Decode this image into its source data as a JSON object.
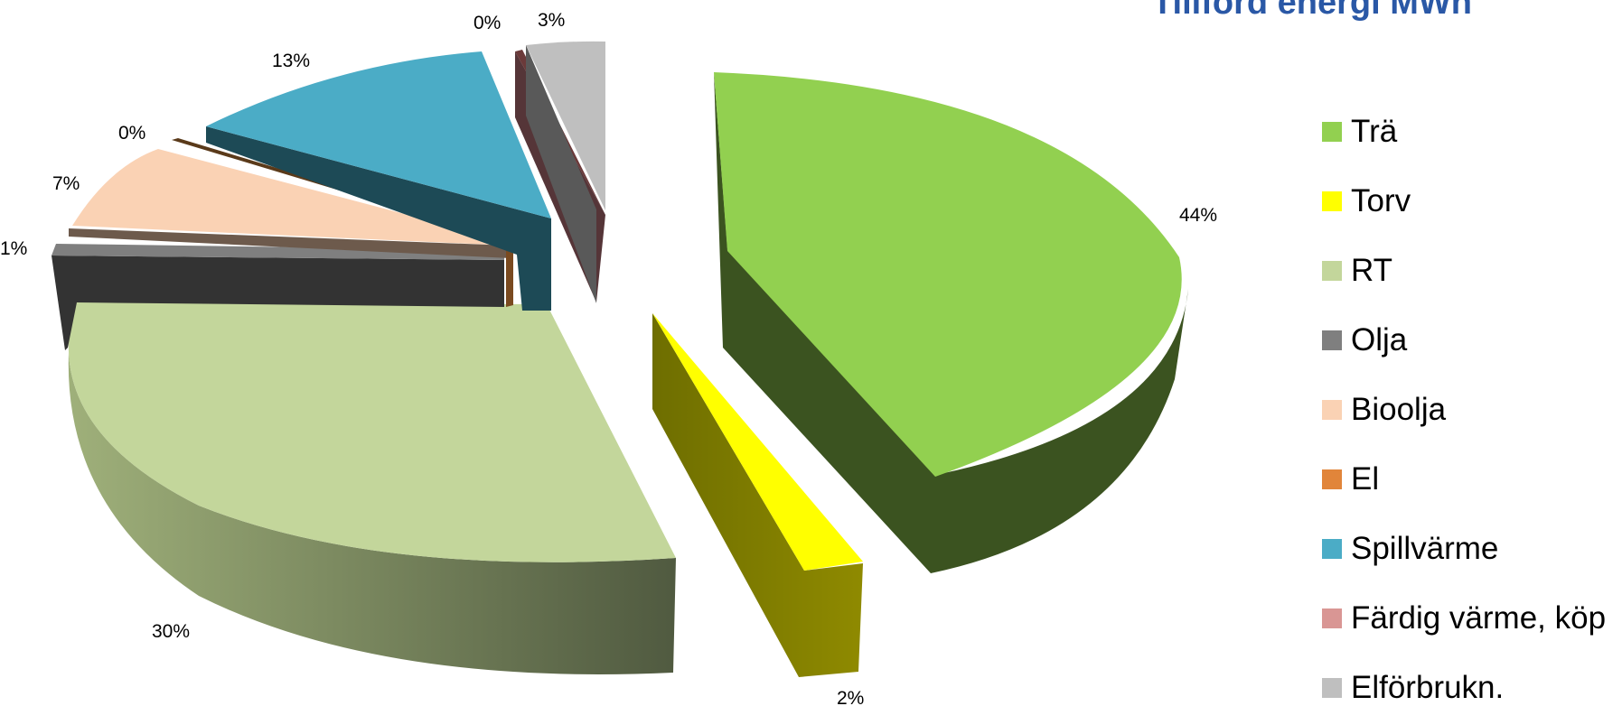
{
  "chart_data": {
    "type": "pie",
    "title": "Tillförd energi MWh",
    "categories": [
      "Trä",
      "Torv",
      "RT",
      "Olja",
      "Bioolja",
      "El",
      "Spillvärme",
      "Färdig värme, köp",
      "Elförbrukn."
    ],
    "values": [
      44,
      2,
      30,
      1,
      7,
      0,
      13,
      0,
      3
    ],
    "data_labels": [
      "44%",
      "2%",
      "30%",
      "1%",
      "7%",
      "0%",
      "13%",
      "0%",
      "3%"
    ],
    "colors": [
      "#92d050",
      "#ffff00",
      "#c3d69b",
      "#7f7f7f",
      "#fad2b4",
      "#e1853a",
      "#4bacc6",
      "#d99694",
      "#bfbfbf"
    ],
    "legend_position": "right",
    "style": "3d-exploded"
  }
}
